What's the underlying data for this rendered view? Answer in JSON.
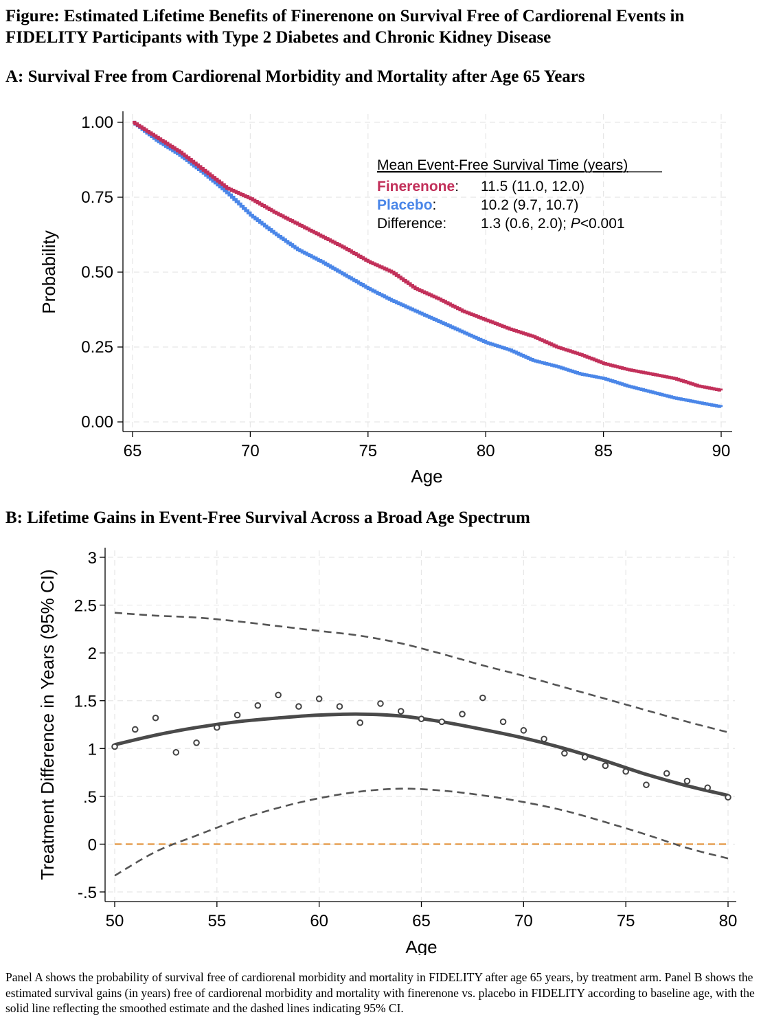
{
  "figure": {
    "title": "Figure: Estimated Lifetime Benefits of Finerenone on Survival Free of Cardiorenal Events in FIDELITY Participants with Type 2 Diabetes and Chronic Kidney Disease",
    "caption": "Panel A shows the probability of survival free of cardiorenal morbidity and mortality in FIDELITY after age 65 years, by treatment arm. Panel B shows the estimated survival gains (in years) free of cardiorenal morbidity and mortality with finerenone vs. placebo in FIDELITY according to baseline age, with the solid line reflecting the smoothed estimate and the dashed lines indicating 95% CI."
  },
  "colors": {
    "finerenone": "#c2305a",
    "placebo": "#4a86e8",
    "smooth": "#4a4a4a",
    "ci": "#555555",
    "reference": "#e08a2c",
    "grid": "#e6e6e6"
  },
  "chart_data": [
    {
      "type": "line",
      "panel_title": "A: Survival Free from Cardiorenal Morbidity and Mortality after Age 65 Years",
      "xlabel": "Age",
      "ylabel": "Probability",
      "xlim": [
        65,
        90
      ],
      "ylim": [
        0,
        1
      ],
      "xticks": [
        65,
        70,
        75,
        80,
        85,
        90
      ],
      "yticks": [
        0,
        0.25,
        0.5,
        0.75,
        1.0
      ],
      "ytick_labels": [
        "0.00",
        "0.25",
        "0.50",
        "0.75",
        "1.00"
      ],
      "x": [
        65,
        66,
        67,
        68,
        69,
        70,
        71,
        72,
        73,
        74,
        75,
        76,
        77,
        78,
        79,
        80,
        81,
        82,
        83,
        84,
        85,
        86,
        87,
        88,
        89,
        90
      ],
      "series": [
        {
          "name": "Finerenone",
          "values": [
            1.0,
            0.95,
            0.9,
            0.84,
            0.78,
            0.745,
            0.7,
            0.66,
            0.62,
            0.58,
            0.535,
            0.5,
            0.445,
            0.41,
            0.37,
            0.34,
            0.31,
            0.285,
            0.25,
            0.225,
            0.195,
            0.175,
            0.16,
            0.145,
            0.12,
            0.105
          ]
        },
        {
          "name": "Placebo",
          "values": [
            1.0,
            0.94,
            0.89,
            0.83,
            0.765,
            0.69,
            0.63,
            0.575,
            0.535,
            0.49,
            0.445,
            0.405,
            0.37,
            0.335,
            0.3,
            0.265,
            0.24,
            0.205,
            0.185,
            0.16,
            0.145,
            0.12,
            0.1,
            0.08,
            0.065,
            0.05
          ]
        }
      ],
      "legend": {
        "heading": "Mean Event-Free Survival Time (years)",
        "rows": [
          {
            "label": "Finerenone",
            "suffix": ":",
            "value": "11.5 (11.0, 12.0)"
          },
          {
            "label": "Placebo",
            "suffix": ":",
            "value": "10.2 (9.7, 10.7)"
          },
          {
            "label": "Difference:",
            "suffix": "",
            "value_prefix": "1.3 (0.6, 2.0); ",
            "value_italic": "P",
            "value_suffix": "<0.001"
          }
        ]
      }
    },
    {
      "type": "line",
      "panel_title": "B: Lifetime Gains in Event-Free Survival Across a Broad Age Spectrum",
      "xlabel": "Age",
      "ylabel": "Treatment Difference in Years (95% CI)",
      "xlim": [
        50,
        80
      ],
      "ylim": [
        -0.5,
        3
      ],
      "xticks": [
        50,
        55,
        60,
        65,
        70,
        75,
        80
      ],
      "yticks": [
        -0.5,
        0,
        0.5,
        1,
        1.5,
        2,
        2.5,
        3
      ],
      "ytick_labels": [
        "-.5",
        "0",
        ".5",
        "1",
        "1.5",
        "2",
        "2.5",
        "3"
      ],
      "reference_line": 0,
      "points": {
        "x": [
          50,
          51,
          52,
          53,
          54,
          55,
          56,
          57,
          58,
          59,
          60,
          61,
          62,
          63,
          64,
          65,
          66,
          67,
          68,
          69,
          70,
          71,
          72,
          73,
          74,
          75,
          76,
          77,
          78,
          79,
          80
        ],
        "y": [
          1.02,
          1.2,
          1.32,
          0.96,
          1.06,
          1.22,
          1.35,
          1.45,
          1.56,
          1.44,
          1.52,
          1.44,
          1.27,
          1.47,
          1.39,
          1.31,
          1.28,
          1.36,
          1.53,
          1.28,
          1.19,
          1.1,
          0.95,
          0.91,
          0.82,
          0.76,
          0.62,
          0.74,
          0.66,
          0.59,
          0.49
        ]
      },
      "smooth": {
        "x": [
          50,
          52,
          54,
          56,
          58,
          60,
          62,
          64,
          66,
          68,
          70,
          72,
          74,
          76,
          78,
          80
        ],
        "y": [
          1.04,
          1.14,
          1.22,
          1.28,
          1.32,
          1.35,
          1.36,
          1.34,
          1.28,
          1.2,
          1.11,
          1.0,
          0.87,
          0.73,
          0.61,
          0.51
        ]
      },
      "ci_upper": {
        "x": [
          50,
          52,
          54,
          56,
          58,
          60,
          62,
          64,
          66,
          68,
          70,
          72,
          74,
          76,
          78,
          80
        ],
        "y": [
          2.42,
          2.39,
          2.37,
          2.33,
          2.28,
          2.23,
          2.18,
          2.1,
          1.99,
          1.87,
          1.76,
          1.64,
          1.52,
          1.4,
          1.28,
          1.17
        ]
      },
      "ci_lower": {
        "x": [
          50,
          52,
          54,
          56,
          58,
          60,
          62,
          64,
          66,
          68,
          70,
          72,
          74,
          76,
          78,
          80
        ],
        "y": [
          -0.33,
          -0.08,
          0.09,
          0.25,
          0.38,
          0.48,
          0.55,
          0.58,
          0.56,
          0.51,
          0.44,
          0.35,
          0.23,
          0.1,
          -0.04,
          -0.15
        ]
      }
    }
  ]
}
